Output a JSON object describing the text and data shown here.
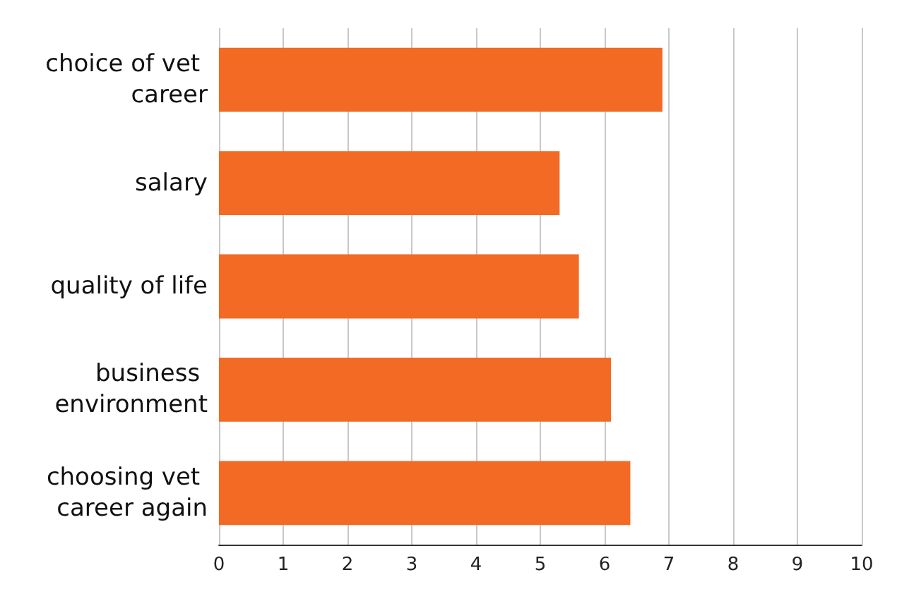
{
  "chart_data": {
    "type": "bar",
    "orientation": "horizontal",
    "categories": [
      "choice of vet career",
      "salary",
      "quality of life",
      "business environment",
      "choosing vet career again"
    ],
    "values": [
      6.9,
      5.3,
      5.6,
      6.1,
      6.4
    ],
    "color": "#f26a24",
    "xlim": [
      0,
      10
    ],
    "xticks": [
      0,
      1,
      2,
      3,
      4,
      5,
      6,
      7,
      8,
      9,
      10
    ],
    "grid": "x"
  }
}
